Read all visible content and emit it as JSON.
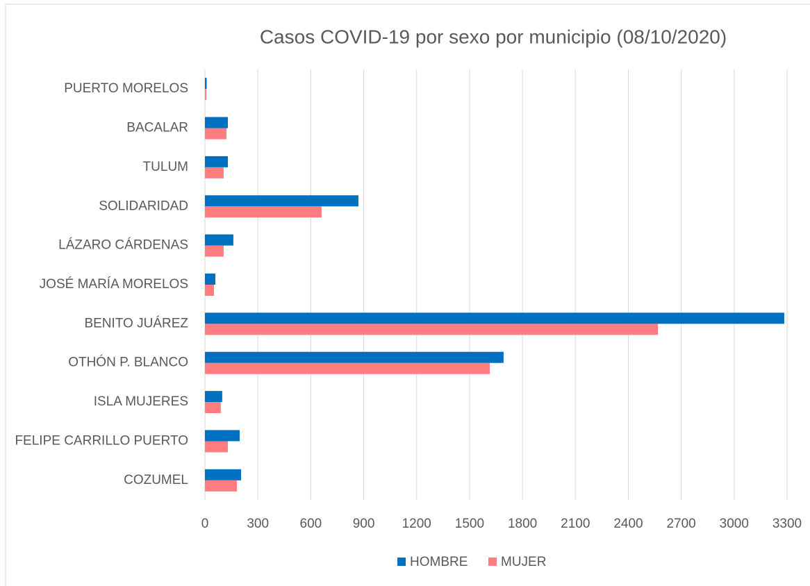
{
  "chart_data": {
    "type": "hbar",
    "title": "Casos COVID-19 por sexo por municipio (08/10/2020)",
    "categories": [
      "PUERTO MORELOS",
      "BACALAR",
      "TULUM",
      "SOLIDARIDAD",
      "LÁZARO CÁRDENAS",
      "JOSÉ MARÍA MORELOS",
      "BENITO JUÁREZ",
      "OTHÓN P. BLANCO",
      "ISLA MUJERES",
      "FELIPE CARRILLO PUERTO",
      "COZUMEL"
    ],
    "series": [
      {
        "name": "HOMBRE",
        "color": "#0070c0",
        "values": [
          10,
          130,
          130,
          870,
          161,
          59,
          3284,
          1693,
          98,
          197,
          205
        ]
      },
      {
        "name": "MUJER",
        "color": "#ff7c80",
        "values": [
          8,
          122,
          106,
          661,
          106,
          51,
          2568,
          1615,
          90,
          130,
          181
        ]
      }
    ],
    "xlim": [
      0,
      3300
    ],
    "xticks": [
      0,
      300,
      600,
      900,
      1200,
      1500,
      1800,
      2100,
      2400,
      2700,
      3000,
      3300
    ],
    "grid": true
  }
}
